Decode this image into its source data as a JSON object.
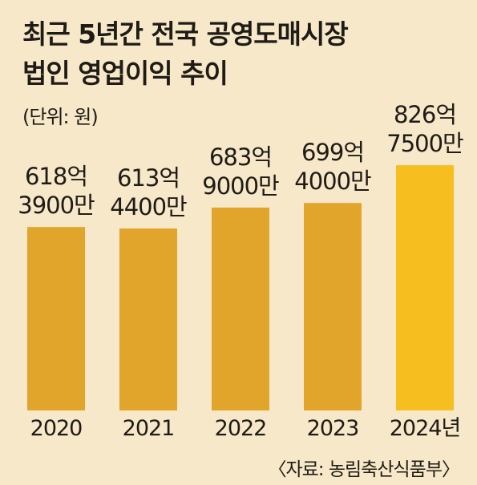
{
  "title": "최근 5년간 전국 공영도매시장\n법인 영업이익 추이",
  "unit_label": "(단위: 원)",
  "source": "〈자료: 농림축산식품부〉",
  "colors": {
    "background": "#f6e8c8",
    "bar": "#e0a52a",
    "highlight_bar": "#f6be1f",
    "text": "#1f1b16"
  },
  "chart_data": {
    "type": "bar",
    "title": "최근 5년간 전국 공영도매시장 법인 영업이익 추이",
    "unit": "원",
    "categories": [
      "2020",
      "2021",
      "2022",
      "2023",
      "2024년"
    ],
    "values": [
      61839000000,
      61344000000,
      68390000000,
      69940000000,
      82675000000
    ],
    "value_labels": [
      [
        "618억",
        "3900만"
      ],
      [
        "613억",
        "4400만"
      ],
      [
        "683억",
        "9000만"
      ],
      [
        "699억",
        "4000만"
      ],
      [
        "826억",
        "7500만"
      ]
    ],
    "highlight_index": 4,
    "grid": false
  }
}
